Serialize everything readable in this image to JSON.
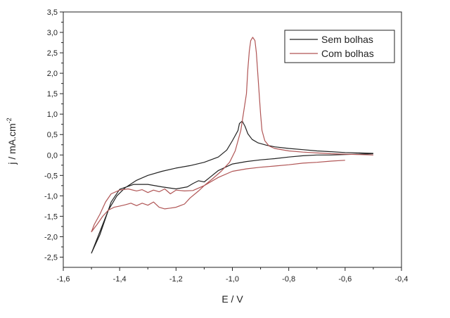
{
  "chart_data": {
    "type": "line",
    "xlabel": "E / V",
    "ylabel": "j / mA.cm",
    "ylabel_superscript": "-2",
    "xlim": [
      -1.6,
      -0.4
    ],
    "ylim": [
      -2.75,
      3.5
    ],
    "x_ticks": [
      -1.6,
      -1.4,
      -1.2,
      -1.0,
      -0.8,
      -0.6,
      -0.4
    ],
    "x_tick_labels": [
      "-1,6",
      "-1,4",
      "-1,2",
      "-1,0",
      "-0,8",
      "-0,6",
      "-0,4"
    ],
    "y_ticks": [
      -2.5,
      -2.0,
      -1.5,
      -1.0,
      -0.5,
      0.0,
      0.5,
      1.0,
      1.5,
      2.0,
      2.5,
      3.0,
      3.5
    ],
    "y_tick_labels": [
      "-2,5",
      "-2,0",
      "-1,5",
      "-1,0",
      "-0,5",
      "0,0",
      "0,5",
      "1,0",
      "1,5",
      "2,0",
      "2,5",
      "3,0",
      "3,5"
    ],
    "grid": false,
    "legend_position": "top-right",
    "series": [
      {
        "name": "Sem bolhas",
        "color": "#222222",
        "points": [
          [
            -0.5,
            0.03
          ],
          [
            -0.55,
            0.02
          ],
          [
            -0.6,
            0.01
          ],
          [
            -0.65,
            0.0
          ],
          [
            -0.7,
            0.0
          ],
          [
            -0.75,
            -0.02
          ],
          [
            -0.8,
            -0.05
          ],
          [
            -0.85,
            -0.09
          ],
          [
            -0.9,
            -0.12
          ],
          [
            -0.95,
            -0.16
          ],
          [
            -1.0,
            -0.22
          ],
          [
            -1.05,
            -0.38
          ],
          [
            -1.08,
            -0.55
          ],
          [
            -1.1,
            -0.66
          ],
          [
            -1.12,
            -0.63
          ],
          [
            -1.14,
            -0.7
          ],
          [
            -1.16,
            -0.78
          ],
          [
            -1.2,
            -0.83
          ],
          [
            -1.25,
            -0.78
          ],
          [
            -1.3,
            -0.72
          ],
          [
            -1.35,
            -0.72
          ],
          [
            -1.4,
            -0.84
          ],
          [
            -1.43,
            -1.15
          ],
          [
            -1.45,
            -1.55
          ],
          [
            -1.47,
            -1.95
          ],
          [
            -1.49,
            -2.25
          ],
          [
            -1.5,
            -2.4
          ],
          [
            -1.48,
            -2.05
          ],
          [
            -1.46,
            -1.7
          ],
          [
            -1.44,
            -1.35
          ],
          [
            -1.41,
            -1.0
          ],
          [
            -1.38,
            -0.8
          ],
          [
            -1.34,
            -0.62
          ],
          [
            -1.3,
            -0.5
          ],
          [
            -1.25,
            -0.4
          ],
          [
            -1.2,
            -0.32
          ],
          [
            -1.15,
            -0.26
          ],
          [
            -1.1,
            -0.18
          ],
          [
            -1.05,
            -0.05
          ],
          [
            -1.02,
            0.12
          ],
          [
            -1.0,
            0.35
          ],
          [
            -0.98,
            0.6
          ],
          [
            -0.975,
            0.77
          ],
          [
            -0.965,
            0.83
          ],
          [
            -0.955,
            0.7
          ],
          [
            -0.945,
            0.52
          ],
          [
            -0.93,
            0.38
          ],
          [
            -0.91,
            0.3
          ],
          [
            -0.88,
            0.24
          ],
          [
            -0.85,
            0.2
          ],
          [
            -0.8,
            0.16
          ],
          [
            -0.75,
            0.13
          ],
          [
            -0.7,
            0.1
          ],
          [
            -0.65,
            0.08
          ],
          [
            -0.6,
            0.06
          ],
          [
            -0.55,
            0.05
          ],
          [
            -0.5,
            0.04
          ]
        ]
      },
      {
        "name": "Com bolhas",
        "color": "#b05555",
        "points": [
          [
            -0.6,
            -0.13
          ],
          [
            -0.65,
            -0.15
          ],
          [
            -0.7,
            -0.18
          ],
          [
            -0.75,
            -0.2
          ],
          [
            -0.8,
            -0.24
          ],
          [
            -0.85,
            -0.27
          ],
          [
            -0.9,
            -0.3
          ],
          [
            -0.95,
            -0.34
          ],
          [
            -1.0,
            -0.4
          ],
          [
            -1.05,
            -0.55
          ],
          [
            -1.1,
            -0.75
          ],
          [
            -1.14,
            -0.87
          ],
          [
            -1.17,
            -0.88
          ],
          [
            -1.2,
            -0.86
          ],
          [
            -1.22,
            -0.95
          ],
          [
            -1.24,
            -0.83
          ],
          [
            -1.26,
            -0.9
          ],
          [
            -1.28,
            -0.86
          ],
          [
            -1.3,
            -0.92
          ],
          [
            -1.32,
            -0.85
          ],
          [
            -1.34,
            -0.88
          ],
          [
            -1.37,
            -0.83
          ],
          [
            -1.4,
            -0.86
          ],
          [
            -1.43,
            -0.95
          ],
          [
            -1.45,
            -1.15
          ],
          [
            -1.47,
            -1.45
          ],
          [
            -1.49,
            -1.7
          ],
          [
            -1.5,
            -1.88
          ],
          [
            -1.48,
            -1.7
          ],
          [
            -1.46,
            -1.5
          ],
          [
            -1.44,
            -1.35
          ],
          [
            -1.42,
            -1.28
          ],
          [
            -1.4,
            -1.25
          ],
          [
            -1.38,
            -1.22
          ],
          [
            -1.36,
            -1.18
          ],
          [
            -1.34,
            -1.24
          ],
          [
            -1.32,
            -1.18
          ],
          [
            -1.3,
            -1.23
          ],
          [
            -1.28,
            -1.15
          ],
          [
            -1.26,
            -1.28
          ],
          [
            -1.24,
            -1.32
          ],
          [
            -1.22,
            -1.3
          ],
          [
            -1.2,
            -1.28
          ],
          [
            -1.17,
            -1.2
          ],
          [
            -1.15,
            -1.05
          ],
          [
            -1.12,
            -0.88
          ],
          [
            -1.1,
            -0.75
          ],
          [
            -1.07,
            -0.58
          ],
          [
            -1.04,
            -0.4
          ],
          [
            -1.01,
            -0.18
          ],
          [
            -0.99,
            0.1
          ],
          [
            -0.97,
            0.6
          ],
          [
            -0.95,
            1.5
          ],
          [
            -0.945,
            2.1
          ],
          [
            -0.94,
            2.55
          ],
          [
            -0.935,
            2.8
          ],
          [
            -0.928,
            2.88
          ],
          [
            -0.92,
            2.8
          ],
          [
            -0.915,
            2.5
          ],
          [
            -0.91,
            2.0
          ],
          [
            -0.905,
            1.5
          ],
          [
            -0.9,
            1.0
          ],
          [
            -0.895,
            0.6
          ],
          [
            -0.885,
            0.35
          ],
          [
            -0.87,
            0.22
          ],
          [
            -0.85,
            0.16
          ],
          [
            -0.8,
            0.1
          ],
          [
            -0.75,
            0.07
          ],
          [
            -0.7,
            0.05
          ],
          [
            -0.65,
            0.03
          ],
          [
            -0.6,
            0.02
          ],
          [
            -0.55,
            0.01
          ],
          [
            -0.5,
            0.0
          ]
        ]
      }
    ]
  }
}
